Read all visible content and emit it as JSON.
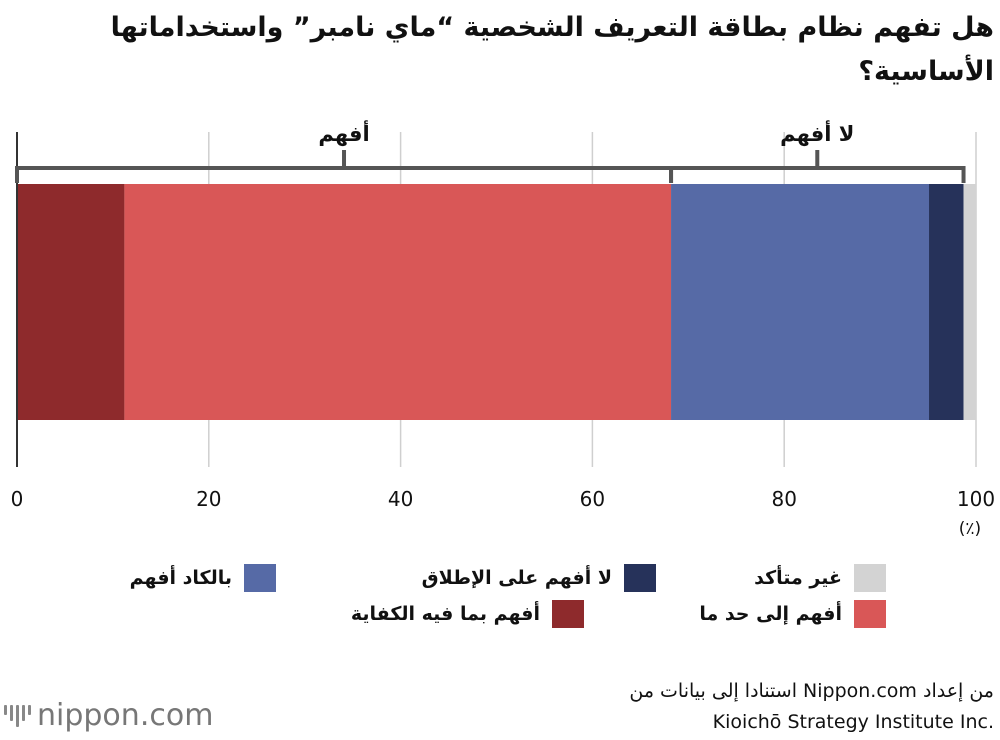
{
  "chart_data": {
    "type": "bar",
    "orientation": "horizontal",
    "stacked": true,
    "title": "هل تفهم نظام بطاقة التعريف الشخصية “ماي نامبر” واستخداماتها الأساسية؟",
    "unit": "(٪)",
    "xlim": [
      0,
      100
    ],
    "x_ticks": [
      "0",
      "20",
      "40",
      "60",
      "80",
      "100"
    ],
    "grid": true,
    "series": [
      {
        "name": "أفهم بما فيه الكفاية",
        "value": 11.2,
        "color": "#8e2a2c"
      },
      {
        "name": "أفهم إلى حد ما",
        "value": 57.0,
        "color": "#d95757"
      },
      {
        "name": "بالكاد أفهم",
        "value": 26.9,
        "color": "#566aa6"
      },
      {
        "name": "لا أفهم على الإطلاق",
        "value": 3.6,
        "color": "#26325a"
      },
      {
        "name": "غير متأكد",
        "value": 1.3,
        "color": "#d3d3d3"
      }
    ],
    "groups": [
      {
        "label": "أفهم",
        "from": 0,
        "to": 68.2
      },
      {
        "label": "لا أفهم",
        "from": 68.2,
        "to": 98.7
      }
    ]
  },
  "legend": [
    {
      "label": "بالكاد أفهم",
      "color": "#566aa6"
    },
    {
      "label": "لا أفهم على الإطلاق",
      "color": "#26325a"
    },
    {
      "label": "غير متأكد",
      "color": "#d3d3d3"
    },
    {
      "label": "أفهم إلى حد ما",
      "color": "#d95757"
    },
    {
      "label": "أفهم بما فيه الكفاية",
      "color": "#8e2a2c"
    }
  ],
  "source": {
    "line1": "من إعداد Nippon.com استنادا إلى بيانات من",
    "line2": "Kioichō Strategy Institute Inc."
  },
  "logo": {
    "brand_name": "nippon",
    "brand_suffix": ".com"
  }
}
